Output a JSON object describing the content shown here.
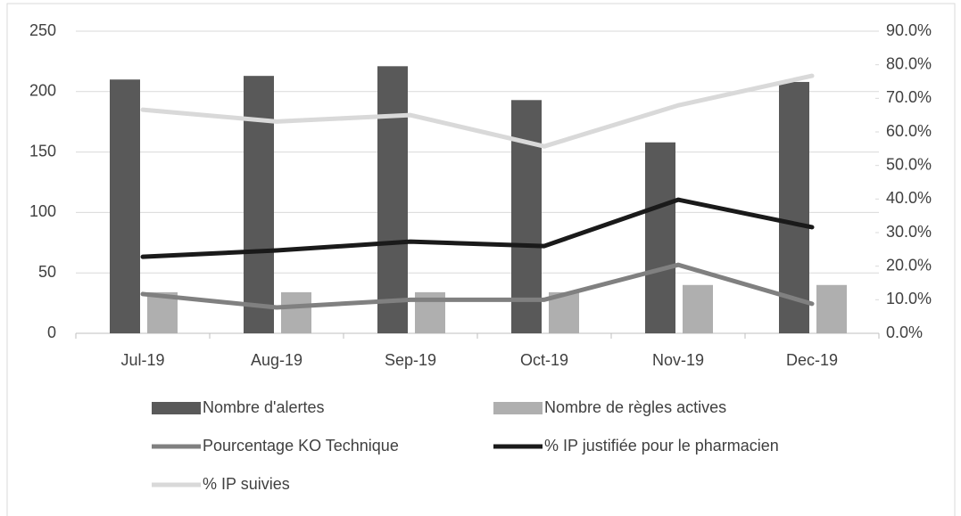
{
  "chart_data": {
    "type": "bar-line",
    "categories": [
      "Jul-19",
      "Aug-19",
      "Sep-19",
      "Oct-19",
      "Nov-19",
      "Dec-19"
    ],
    "series": [
      {
        "name": "Nombre d'alertes",
        "kind": "bar",
        "color": "#595959",
        "values": [
          210,
          213,
          221,
          193,
          158,
          208
        ]
      },
      {
        "name": "Nombre de règles actives",
        "kind": "bar",
        "color": "#afafaf",
        "values": [
          34,
          34,
          34,
          34,
          40,
          40
        ]
      },
      {
        "name": "Pourcentage KO Technique",
        "kind": "line",
        "axis": "y2",
        "color": "#808080",
        "values": [
          11.7,
          7.7,
          10,
          10,
          20.4,
          8.8
        ]
      },
      {
        "name": "% IP justifiée pour le pharmacien",
        "kind": "line",
        "axis": "y2",
        "color": "#1a1a1a",
        "values": [
          22.8,
          24.7,
          27.3,
          26,
          39.8,
          31.6
        ]
      },
      {
        "name": "% IP suivies",
        "kind": "line",
        "axis": "y2",
        "color": "#d9d9d9",
        "values": [
          66.6,
          63.1,
          65,
          55.7,
          67.9,
          76.7
        ]
      }
    ],
    "ylim": [
      0,
      250
    ],
    "yticks": [
      0,
      50,
      100,
      150,
      200,
      250
    ],
    "y2lim": [
      0,
      90
    ],
    "y2ticks": [
      {
        "value": 0,
        "label": "0.0%"
      },
      {
        "value": 10,
        "label": "10.0%"
      },
      {
        "value": 20,
        "label": "20.0%"
      },
      {
        "value": 30,
        "label": "30.0%"
      },
      {
        "value": 40,
        "label": "40.0%"
      },
      {
        "value": 50,
        "label": "50.0%"
      },
      {
        "value": 60,
        "label": "60.0%"
      },
      {
        "value": 70,
        "label": "70.0%"
      },
      {
        "value": 80,
        "label": "80.0%"
      },
      {
        "value": 90,
        "label": "90.0%"
      }
    ],
    "grid": true,
    "legend": "bottom"
  }
}
